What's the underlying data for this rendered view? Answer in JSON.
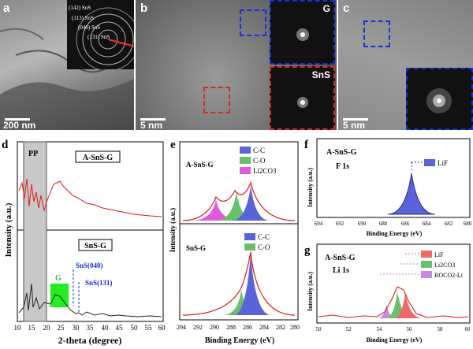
{
  "panels": {
    "a": {
      "label": "a",
      "scale": "200 nm",
      "saed_rings": [
        "(142) SnS",
        "(113) SnS",
        "(040) SnS",
        "(131) SnS"
      ]
    },
    "b": {
      "label": "b",
      "scale": "5 nm",
      "inset_top": "G",
      "inset_bottom": "SnS"
    },
    "c": {
      "label": "c",
      "scale": "5 nm"
    },
    "d": {
      "label": "d",
      "top_sample": "A-SnS-G",
      "bottom_sample": "SnS-G",
      "region_pp": "PP",
      "region_g": "G",
      "peak1": "SnS(040)",
      "peak2": "SnS(131)",
      "xlabel": "2-theta (degree)",
      "ylabel": "Intensity (a.u.)",
      "xticks": [
        "10",
        "15",
        "20",
        "25",
        "30",
        "35",
        "40",
        "45",
        "50",
        "55",
        "60"
      ]
    },
    "e": {
      "label": "e",
      "top_sample": "A-SnS-G",
      "bottom_sample": "SnS-G",
      "xlabel": "Binding Energy (eV)",
      "ylabel": "Intensity (a.u.)",
      "xticks": [
        "294",
        "292",
        "290",
        "288",
        "286",
        "284",
        "282",
        "280"
      ],
      "legend_top": [
        "C-C",
        "C-O",
        "Li2CO3"
      ],
      "legend_bottom": [
        "C-C",
        "C-O"
      ]
    },
    "f": {
      "label": "f",
      "sample": "A-SnS-G",
      "element": "F 1s",
      "legend": [
        "LiF"
      ],
      "xlabel": "Binding Energy (eV)",
      "ylabel": "Intensity (a.u.)",
      "xticks": [
        "694",
        "692",
        "690",
        "688",
        "686",
        "684",
        "682",
        "680"
      ]
    },
    "g": {
      "label": "g",
      "sample": "A-SnS-G",
      "element": "Li 1s",
      "legend": [
        "LiF",
        "Li2CO3",
        "ROCO2-Li"
      ],
      "xlabel": "Binding Energy (eV)",
      "ylabel": "Intensity (a.u.)",
      "xticks": [
        "50",
        "52",
        "54",
        "56",
        "58",
        "60"
      ]
    }
  },
  "colors": {
    "ccblue": "#5a63d8",
    "cogreen": "#6abf6a",
    "li2co3": "#e05bd9",
    "lif_red": "#ee6a6a",
    "rocoli": "#c88ae0",
    "envelope": "#e21818",
    "gbox": "#22ee22",
    "ppbox": "#c8c8c8"
  },
  "chart_data": [
    {
      "type": "line",
      "panel": "d",
      "series": [
        {
          "name": "A-SnS-G"
        },
        {
          "name": "SnS-G"
        }
      ],
      "xlim": [
        10,
        60
      ]
    },
    {
      "type": "area",
      "panel": "e",
      "series": [
        {
          "name": "C-C",
          "center": 284.8
        },
        {
          "name": "C-O",
          "center": 286.2
        },
        {
          "name": "Li2CO3",
          "center": 289.3
        }
      ],
      "xlim": [
        294,
        280
      ]
    },
    {
      "type": "area",
      "panel": "f",
      "series": [
        {
          "name": "LiF",
          "center": 685.1
        }
      ],
      "xlim": [
        694,
        680
      ]
    },
    {
      "type": "area",
      "panel": "g",
      "series": [
        {
          "name": "LiF",
          "center": 56.0
        },
        {
          "name": "Li2CO3",
          "center": 55.3
        },
        {
          "name": "ROCO2-Li",
          "center": 54.2
        }
      ],
      "xlim": [
        50,
        60
      ]
    }
  ]
}
